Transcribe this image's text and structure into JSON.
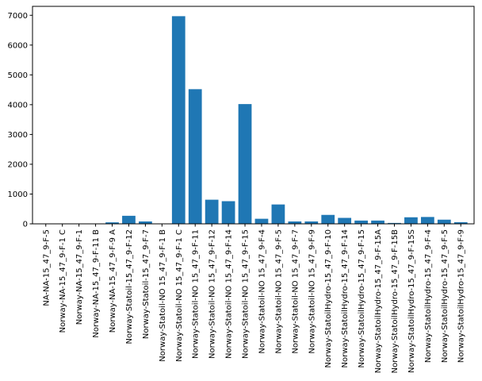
{
  "colors": {
    "bar": "#1f77b4",
    "axis": "#000000",
    "background": "#ffffff"
  },
  "chart_data": {
    "type": "bar",
    "title": "",
    "xlabel": "",
    "ylabel": "",
    "ylim": [
      0,
      7300
    ],
    "yticks": [
      0,
      1000,
      2000,
      3000,
      4000,
      5000,
      6000,
      7000
    ],
    "grid": false,
    "legend": "none",
    "categories": [
      "NA-NA-15_47_9-F-5",
      "Norway-NA-15_47_9-F-1 C",
      "Norway-NA-15_47_9-F-1",
      "Norway-NA-15_47_9-F-11 B",
      "Norway-NA-15_47_9-F-9 A",
      "Norway-Statoil-15_47_9-F-12",
      "Norway-Statoil-15_47_9-F-7",
      "Norway-Statoil-NO 15_47_9-F-1 B",
      "Norway-Statoil-NO 15_47_9-F-1 C",
      "Norway-Statoil-NO 15_47_9-F-11",
      "Norway-Statoil-NO 15_47_9-F-12",
      "Norway-Statoil-NO 15_47_9-F-14",
      "Norway-Statoil-NO 15_47_9-F-15",
      "Norway-Statoil-NO 15_47_9-F-4",
      "Norway-Statoil-NO 15_47_9-F-5",
      "Norway-Statoil-NO 15_47_9-F-7",
      "Norway-Statoil-NO 15_47_9-F-9",
      "Norway-StatoilHydro-15_47_9-F-10",
      "Norway-StatoilHydro-15_47_9-F-14",
      "Norway-StatoilHydro-15_47_9-F-15",
      "Norway-StatoilHydro-15_47_9-F-15A",
      "Norway-StatoilHydro-15_47_9-F-15B",
      "Norway-StatoilHydro-15_47_9-F-15S",
      "Norway-StatoilHydro-15_47_9-F-4",
      "Norway-StatoilHydro-15_47_9-F-5",
      "Norway-StatoilHydro-15_47_9-F-9"
    ],
    "values": [
      0,
      0,
      0,
      0,
      50,
      270,
      80,
      0,
      6970,
      4520,
      810,
      760,
      4020,
      170,
      650,
      80,
      80,
      300,
      200,
      110,
      110,
      30,
      220,
      230,
      140,
      55
    ]
  }
}
